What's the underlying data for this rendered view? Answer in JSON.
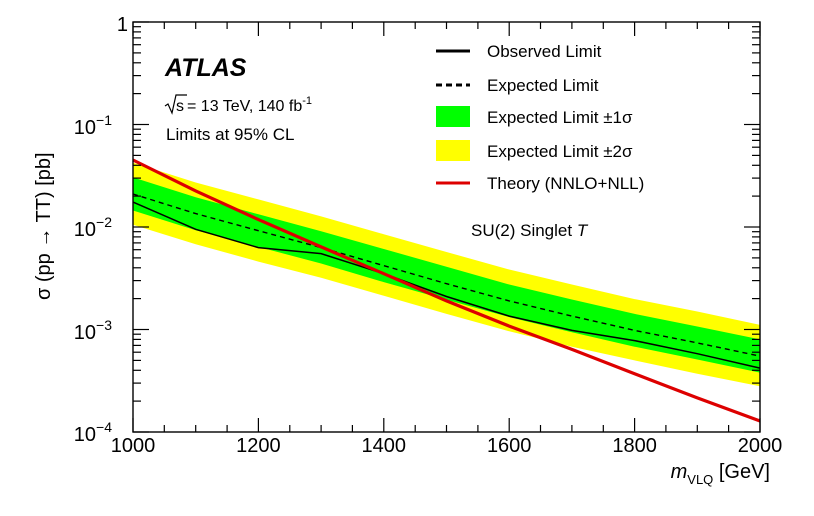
{
  "chart_data": {
    "type": "line",
    "experiment": "ATLAS",
    "energy_label": "= 13 TeV, 140 fb",
    "energy_sqrt": "s",
    "lumi_exp": "-1",
    "cl_label": "Limits at 95% CL",
    "model_label": "SU(2) Singlet",
    "model_particle": "T",
    "xlabel": "[GeV]",
    "xlabel_var": "m",
    "xlabel_sub": "VLQ",
    "ylabel": "σ (pp → TT) [pb]",
    "xlim": [
      1000,
      2000
    ],
    "ylim": [
      0.0001,
      1
    ],
    "yscale": "log",
    "x_ticks": [
      "1000",
      "1200",
      "1400",
      "1600",
      "1800",
      "2000"
    ],
    "y_ticks": [
      {
        "value": 0.0001,
        "base": "10",
        "exp": "−4"
      },
      {
        "value": 0.001,
        "base": "10",
        "exp": "−3"
      },
      {
        "value": 0.01,
        "base": "10",
        "exp": "−2"
      },
      {
        "value": 0.1,
        "base": "10",
        "exp": "−1"
      },
      {
        "value": 1,
        "base": "1",
        "exp": ""
      }
    ],
    "x": [
      1000,
      1100,
      1200,
      1300,
      1400,
      1500,
      1600,
      1700,
      1800,
      1900,
      2000
    ],
    "series": [
      {
        "name": "Observed Limit",
        "style": "solid",
        "color": "#000000",
        "values": [
          0.0175,
          0.0095,
          0.0063,
          0.0055,
          0.0035,
          0.0021,
          0.00135,
          0.00098,
          0.00078,
          0.00058,
          0.00042
        ]
      },
      {
        "name": "Expected Limit",
        "style": "dashed",
        "color": "#000000",
        "values": [
          0.021,
          0.0135,
          0.0092,
          0.0063,
          0.0042,
          0.0028,
          0.0019,
          0.00135,
          0.00098,
          0.00074,
          0.00055
        ]
      },
      {
        "name": "Theory (NNLO+NLL)",
        "style": "solid",
        "color": "#dd0000",
        "values": [
          0.045,
          0.0225,
          0.0118,
          0.0064,
          0.0035,
          0.0019,
          0.00108,
          0.00064,
          0.00037,
          0.000215,
          0.000128
        ]
      }
    ],
    "bands": [
      {
        "name": "Expected Limit ±1σ",
        "color": "#00ff00",
        "low": [
          0.0145,
          0.0093,
          0.0064,
          0.0044,
          0.0029,
          0.00195,
          0.00132,
          0.00094,
          0.00068,
          0.00051,
          0.00038
        ],
        "high": [
          0.0305,
          0.0195,
          0.0133,
          0.0091,
          0.0061,
          0.0041,
          0.00275,
          0.00196,
          0.00142,
          0.00107,
          0.0008
        ]
      },
      {
        "name": "Expected Limit ±2σ",
        "color": "#ffff00",
        "low": [
          0.0105,
          0.0068,
          0.0046,
          0.0032,
          0.00213,
          0.00142,
          0.00096,
          0.00068,
          0.0005,
          0.00037,
          0.00028
        ]
      },
      {
        "name": "_2s_high",
        "color": "#ffff00",
        "high": [
          0.0425,
          0.0272,
          0.0186,
          0.0127,
          0.0085,
          0.0057,
          0.00385,
          0.00275,
          0.00198,
          0.0015,
          0.00111
        ]
      }
    ],
    "legend": [
      {
        "label": "Observed Limit",
        "kind": "solid"
      },
      {
        "label": "Expected Limit",
        "kind": "dashed"
      },
      {
        "label": "Expected Limit ±1σ",
        "kind": "green"
      },
      {
        "label": "Expected Limit ±2σ",
        "kind": "yellow"
      },
      {
        "label": "Theory (NNLO+NLL)",
        "kind": "red"
      }
    ],
    "legend_position": "top-right"
  }
}
